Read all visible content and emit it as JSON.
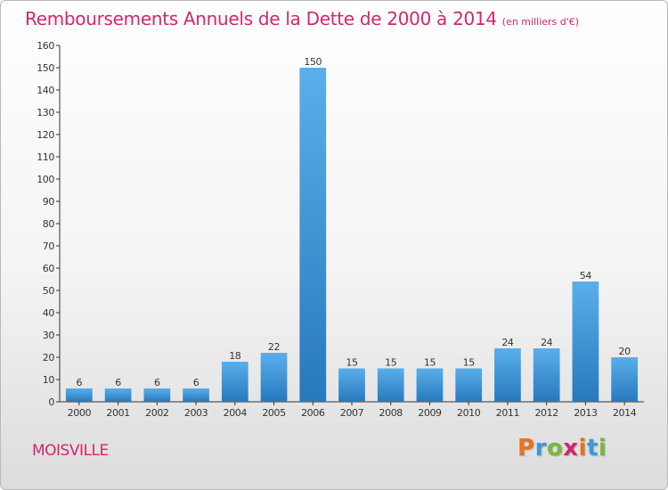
{
  "title": "Remboursements Annuels de la Dette de 2000 à 2014",
  "unit": "(en milliers d'€)",
  "commune": "MOISVILLE",
  "brand": {
    "letters": [
      "P",
      "r",
      "o",
      "x",
      "i",
      "t",
      "i"
    ],
    "colors": [
      "#e8731f",
      "#3a9bd6",
      "#7ab83a",
      "#d2266d",
      "#e8731f",
      "#3a9bd6",
      "#7ab83a"
    ]
  },
  "chart_data": {
    "type": "bar",
    "title": "Remboursements Annuels de la Dette de 2000 à 2014",
    "categories": [
      "2000",
      "2001",
      "2002",
      "2003",
      "2004",
      "2005",
      "2006",
      "2007",
      "2008",
      "2009",
      "2010",
      "2011",
      "2012",
      "2013",
      "2014"
    ],
    "values": [
      6,
      6,
      6,
      6,
      18,
      22,
      150,
      15,
      15,
      15,
      15,
      24,
      24,
      54,
      20
    ],
    "ylim": [
      0,
      160
    ],
    "yticks": [
      0,
      10,
      20,
      30,
      40,
      50,
      60,
      70,
      80,
      90,
      100,
      110,
      120,
      130,
      140,
      150,
      160
    ],
    "grid": false,
    "bar_color": "#4ea3e0"
  }
}
